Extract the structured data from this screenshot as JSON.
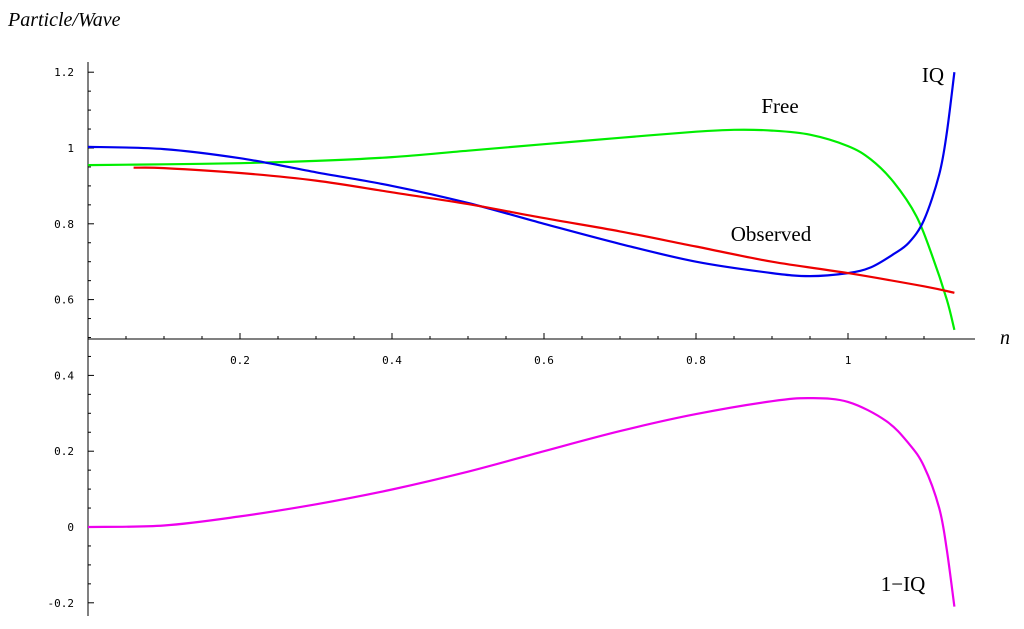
{
  "chart_data": {
    "type": "line",
    "ylabel": "Particle/Wave",
    "xlabel": "n",
    "xlim": [
      0,
      1.17
    ],
    "ylim": [
      -0.22,
      1.23
    ],
    "xticks": [
      "0.2",
      "0.4",
      "0.6",
      "0.8",
      "1"
    ],
    "yticks": [
      "-0.2",
      "0",
      "0.2",
      "0.4",
      "0.6",
      "0.8",
      "1",
      "1.2"
    ],
    "grid": false,
    "legend": "none",
    "series": [
      {
        "name": "Free",
        "color": "#00ee00",
        "x": [
          0,
          0.1,
          0.2,
          0.3,
          0.4,
          0.5,
          0.6,
          0.7,
          0.8,
          0.85,
          0.9,
          0.95,
          1.0,
          1.03,
          1.06,
          1.09,
          1.11,
          1.13,
          1.14
        ],
        "y": [
          0.955,
          0.957,
          0.96,
          0.966,
          0.976,
          0.993,
          1.01,
          1.027,
          1.043,
          1.048,
          1.046,
          1.035,
          1.005,
          0.97,
          0.91,
          0.82,
          0.72,
          0.6,
          0.52
        ]
      },
      {
        "name": "IQ",
        "color": "#0000ee",
        "x": [
          0,
          0.1,
          0.2,
          0.3,
          0.4,
          0.5,
          0.6,
          0.7,
          0.8,
          0.9,
          0.95,
          1.0,
          1.03,
          1.06,
          1.08,
          1.1,
          1.12,
          1.13,
          1.14
        ],
        "y": [
          1.003,
          0.997,
          0.973,
          0.936,
          0.9,
          0.855,
          0.8,
          0.747,
          0.7,
          0.67,
          0.662,
          0.67,
          0.685,
          0.72,
          0.75,
          0.81,
          0.93,
          1.04,
          1.2
        ]
      },
      {
        "name": "Observed",
        "color": "#ee0000",
        "x": [
          0.06,
          0.1,
          0.2,
          0.3,
          0.4,
          0.5,
          0.6,
          0.7,
          0.8,
          0.9,
          1.0,
          1.1,
          1.14
        ],
        "y": [
          0.948,
          0.947,
          0.934,
          0.914,
          0.883,
          0.852,
          0.815,
          0.78,
          0.74,
          0.7,
          0.67,
          0.635,
          0.618
        ]
      },
      {
        "name": "1−IQ",
        "color": "#ee00ee",
        "x": [
          0,
          0.1,
          0.2,
          0.3,
          0.4,
          0.5,
          0.6,
          0.7,
          0.8,
          0.9,
          0.95,
          1.0,
          1.05,
          1.08,
          1.1,
          1.12,
          1.13,
          1.14
        ],
        "y": [
          0.0,
          0.004,
          0.028,
          0.06,
          0.099,
          0.146,
          0.2,
          0.253,
          0.298,
          0.332,
          0.34,
          0.33,
          0.28,
          0.22,
          0.16,
          0.05,
          -0.06,
          -0.21
        ]
      }
    ]
  }
}
